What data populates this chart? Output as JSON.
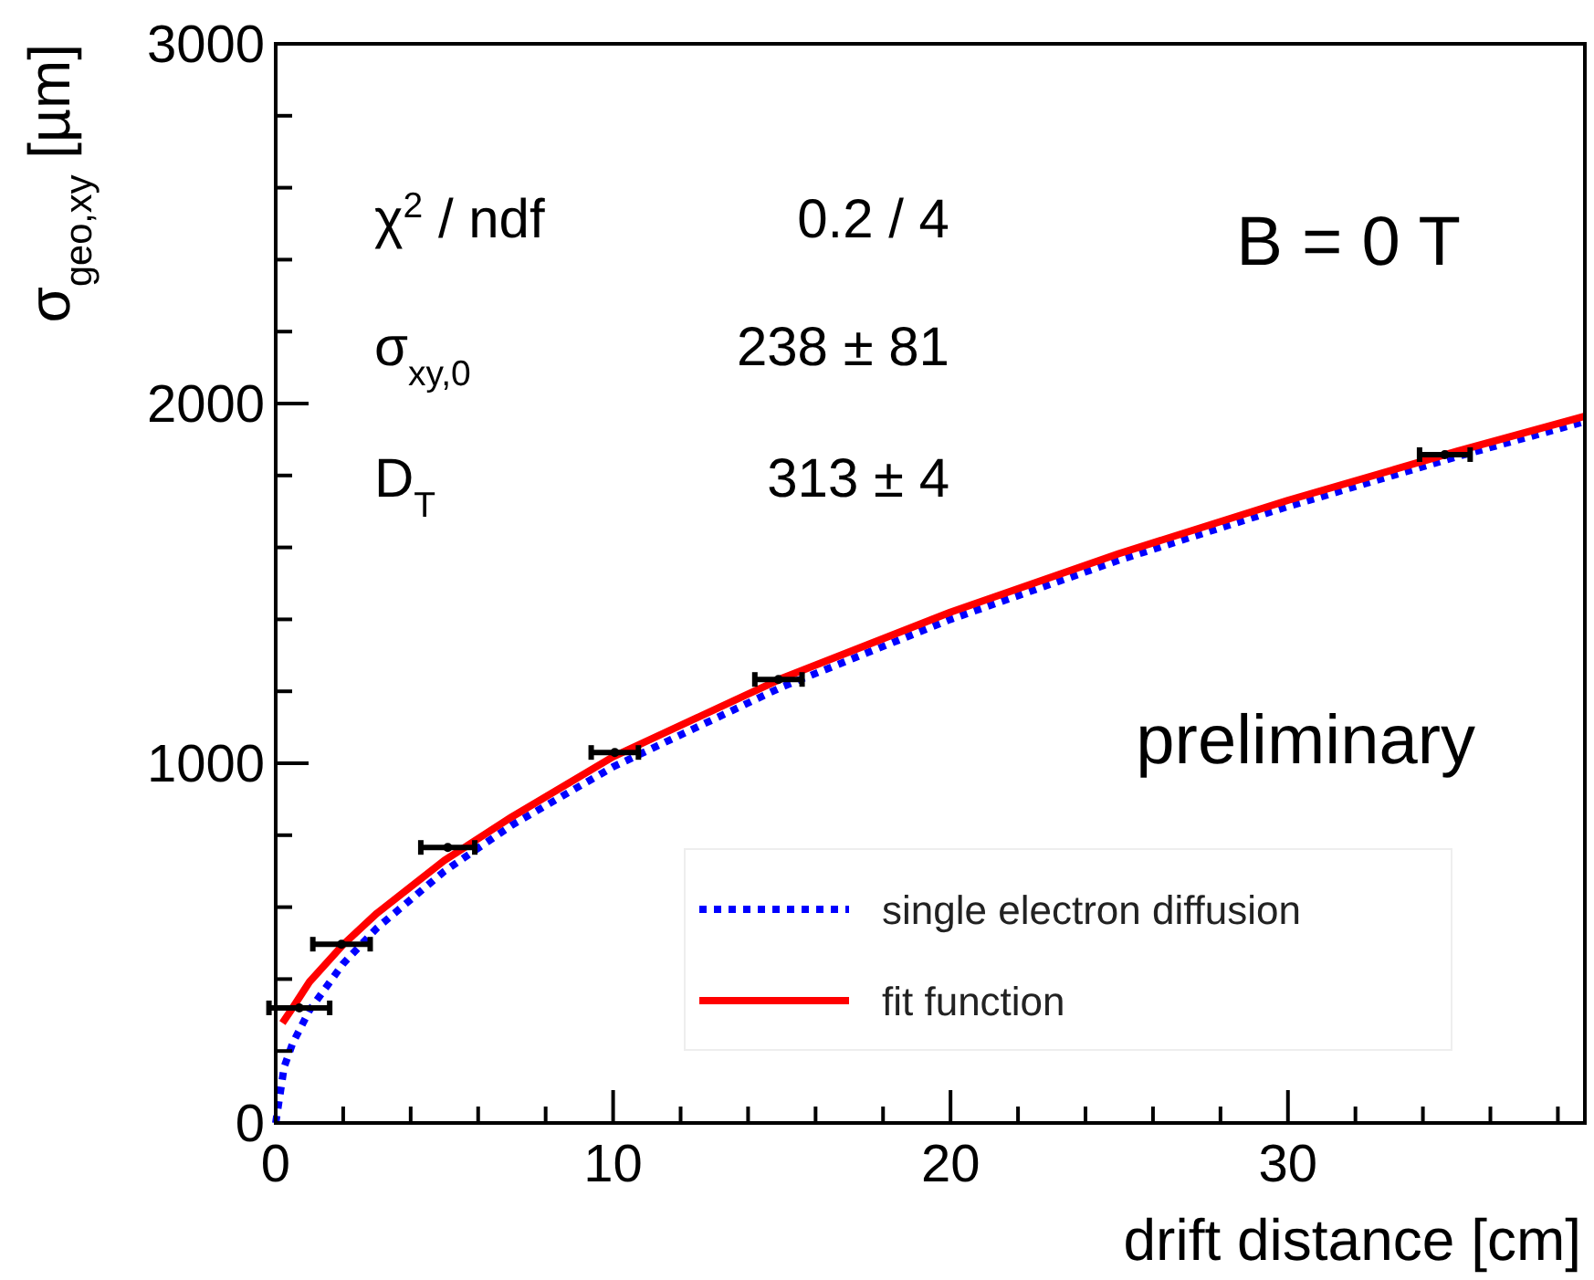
{
  "chart_data": {
    "type": "scatter",
    "xlabel": "drift distance [cm]",
    "ylabel": "σ$_{geo,xy}$ [µm]",
    "xlim": [
      0,
      38.8
    ],
    "ylim": [
      0,
      3000
    ],
    "xticks": [
      0,
      {
        "value": 2,
        "label": null
      },
      {
        "value": 4,
        "label": null
      },
      {
        "value": 6,
        "label": null
      },
      {
        "value": 8,
        "label": null
      },
      10,
      {
        "value": 12,
        "label": null
      },
      {
        "value": 14,
        "label": null
      },
      {
        "value": 16,
        "label": null
      },
      {
        "value": 18,
        "label": null
      },
      20,
      {
        "value": 22,
        "label": null
      },
      {
        "value": 24,
        "label": null
      },
      {
        "value": 26,
        "label": null
      },
      {
        "value": 28,
        "label": null
      },
      30,
      {
        "value": 32,
        "label": null
      },
      {
        "value": 34,
        "label": null
      },
      {
        "value": 36,
        "label": null
      },
      {
        "value": 38,
        "label": null
      }
    ],
    "yticks": [
      0,
      {
        "value": 200,
        "label": null
      },
      {
        "value": 400,
        "label": null
      },
      {
        "value": 600,
        "label": null
      },
      {
        "value": 800,
        "label": null
      },
      1000,
      {
        "value": 1200,
        "label": null
      },
      {
        "value": 1400,
        "label": null
      },
      {
        "value": 1600,
        "label": null
      },
      {
        "value": 1800,
        "label": null
      },
      2000,
      {
        "value": 2200,
        "label": null
      },
      {
        "value": 2400,
        "label": null
      },
      {
        "value": 2600,
        "label": null
      },
      {
        "value": 2800,
        "label": null
      },
      3000
    ],
    "grid": false,
    "legend": "bottom right",
    "series": [
      {
        "marker": "circle",
        "color": "#000000",
        "x": [
          0.7,
          1.95,
          5.1,
          10.05,
          14.9,
          34.65
        ],
        "values": [
          320,
          497,
          766,
          1030,
          1233,
          1858
        ],
        "xerrors": [
          0.9,
          0.85,
          0.8,
          0.7,
          0.7,
          0.75
        ]
      },
      {
        "type": "line",
        "marker": "none",
        "name": "single electron diffusion",
        "color": "#0000ff",
        "line_style": "dotted",
        "x": [
          0,
          0.25,
          0.5,
          1,
          2,
          3,
          5,
          7,
          10,
          15,
          20,
          25,
          30,
          35,
          38.8
        ],
        "values": [
          0,
          156,
          221,
          313,
          443,
          542,
          700,
          828,
          990,
          1212,
          1400,
          1565,
          1714,
          1852,
          1950
        ]
      },
      {
        "type": "line",
        "marker": "none",
        "name": "fit function",
        "color": "#ff0000",
        "line_style": "solid",
        "x": [
          0.2,
          0.5,
          1,
          2,
          3,
          5,
          7,
          10,
          15,
          20,
          25,
          30,
          35,
          38.8
        ],
        "values": [
          278,
          320,
          392,
          496,
          583,
          730,
          851,
          1018,
          1236,
          1420,
          1583,
          1731,
          1867,
          1965
        ]
      }
    ],
    "annotations": [
      "χ$^{2}$ / ndf",
      "0.2 / 4",
      "σ$_{xy,0}$",
      "238 ± 81",
      "D$_{T}$",
      "313 ± 4",
      "B = 0 T",
      "preliminary"
    ]
  }
}
